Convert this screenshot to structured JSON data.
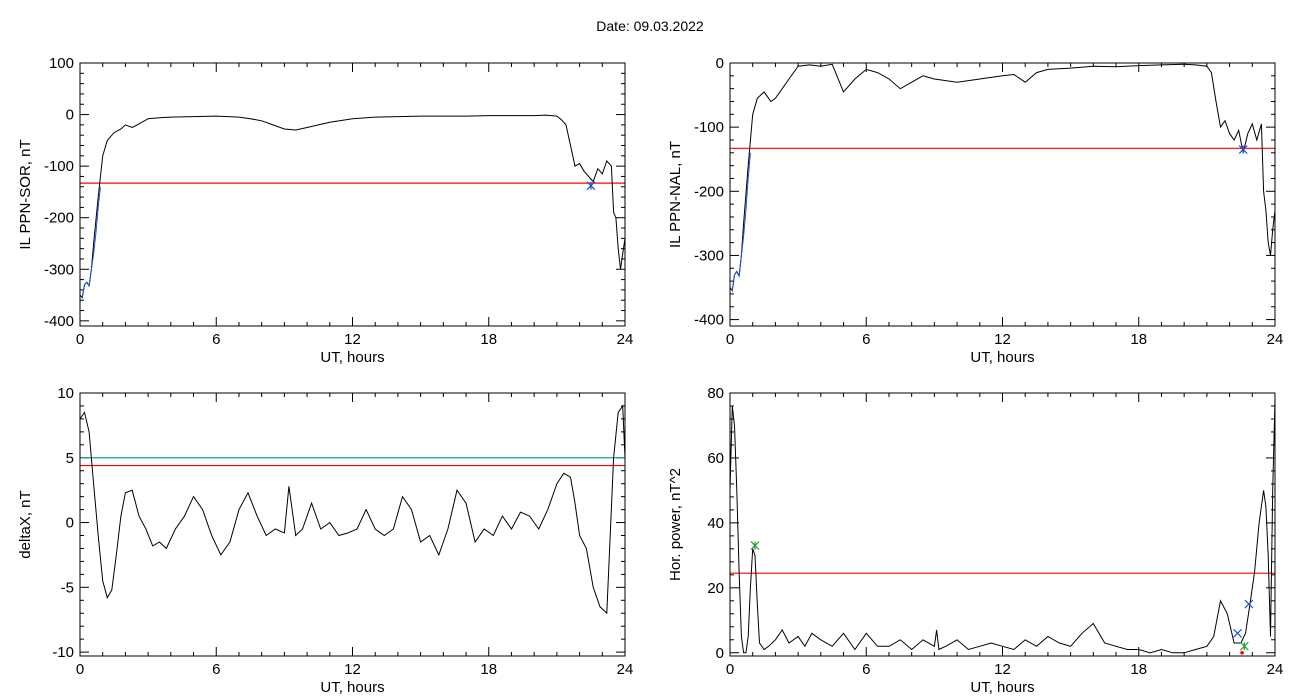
{
  "page_title": "Date:  09.03.2022",
  "colors": {
    "data_line": "#000000",
    "threshold_red": "#ff0000",
    "threshold_teal": "#1a9e8f",
    "marker_blue": "#1f4fd6",
    "marker_green": "#1a9e2a"
  },
  "chart_data": [
    {
      "type": "line",
      "id": "sor",
      "xlabel": "UT, hours",
      "ylabel": "IL PPN-SOR, nT",
      "xlim": [
        0,
        24
      ],
      "ylim": [
        -410,
        100
      ],
      "xticks": [
        0,
        6,
        12,
        18,
        24
      ],
      "yticks": [
        100,
        0,
        -100,
        -200,
        -300,
        -400
      ],
      "thresholds": [
        {
          "y": -133,
          "color": "#ff0000"
        }
      ],
      "series": [
        {
          "color": "#000000",
          "x": [
            0,
            0.1,
            0.2,
            0.3,
            0.4,
            0.5,
            0.6,
            0.8,
            1.0,
            1.2,
            1.5,
            1.8,
            2.0,
            2.3,
            2.6,
            3.0,
            3.5,
            4,
            5,
            6,
            7,
            7.5,
            8,
            8.5,
            9,
            9.5,
            10,
            10.5,
            11,
            12,
            13,
            14,
            15,
            16,
            17,
            18,
            19,
            20,
            20.5,
            21,
            21.2,
            21.4,
            21.6,
            21.8,
            22,
            22.2,
            22.4,
            22.6,
            22.8,
            23,
            23.2,
            23.4,
            23.5,
            23.6,
            23.7,
            23.8,
            23.9,
            24
          ],
          "y": [
            -350,
            -355,
            -330,
            -325,
            -332,
            -300,
            -250,
            -160,
            -80,
            -50,
            -35,
            -28,
            -20,
            -25,
            -18,
            -8,
            -6,
            -5,
            -4,
            -3,
            -5,
            -8,
            -12,
            -20,
            -28,
            -30,
            -25,
            -20,
            -15,
            -8,
            -5,
            -4,
            -3,
            -3,
            -3,
            -2,
            -2,
            -2,
            -1,
            -3,
            -10,
            -20,
            -60,
            -100,
            -95,
            -110,
            -120,
            -130,
            -105,
            -115,
            -90,
            -100,
            -190,
            -200,
            -260,
            -300,
            -270,
            -240
          ]
        },
        {
          "color": "#1f4fd6",
          "x": [
            0.1,
            0.2,
            0.3,
            0.4,
            0.5,
            0.6,
            0.7,
            0.8,
            0.9
          ],
          "y": [
            -355,
            -330,
            -325,
            -332,
            -300,
            -270,
            -230,
            -180,
            -140
          ]
        }
      ],
      "markers": [
        {
          "x": 22.5,
          "y": -138,
          "symbol": "*",
          "color": "#1f4fd6"
        }
      ]
    },
    {
      "type": "line",
      "id": "nal",
      "xlabel": "UT, hours",
      "ylabel": "IL PPN-NAL, nT",
      "xlim": [
        0,
        24
      ],
      "ylim": [
        -410,
        0
      ],
      "xticks": [
        0,
        6,
        12,
        18,
        24
      ],
      "yticks": [
        0,
        -100,
        -200,
        -300,
        -400
      ],
      "thresholds": [
        {
          "y": -133,
          "color": "#ff0000"
        }
      ],
      "series": [
        {
          "color": "#000000",
          "x": [
            0,
            0.1,
            0.2,
            0.3,
            0.4,
            0.5,
            0.6,
            0.8,
            1.0,
            1.2,
            1.5,
            1.8,
            2.0,
            2.3,
            2.6,
            3.0,
            3.5,
            4,
            4.5,
            5,
            5.5,
            6,
            6.5,
            7,
            7.5,
            8,
            8.5,
            9,
            10,
            11,
            12,
            12.5,
            13,
            13.5,
            14,
            15,
            16,
            17,
            18,
            19,
            20,
            20.5,
            21,
            21.2,
            21.4,
            21.6,
            21.8,
            22,
            22.2,
            22.4,
            22.6,
            22.8,
            23,
            23.2,
            23.4,
            23.5,
            23.6,
            23.7,
            23.8,
            23.9,
            24
          ],
          "y": [
            -350,
            -355,
            -330,
            -325,
            -332,
            -300,
            -250,
            -160,
            -80,
            -55,
            -45,
            -60,
            -55,
            -40,
            -25,
            -5,
            -3,
            -5,
            -2,
            -45,
            -25,
            -10,
            -15,
            -25,
            -40,
            -30,
            -20,
            -25,
            -30,
            -25,
            -20,
            -18,
            -30,
            -15,
            -10,
            -8,
            -5,
            -6,
            -4,
            -3,
            -2,
            -3,
            -5,
            -15,
            -60,
            -100,
            -90,
            -110,
            -120,
            -105,
            -140,
            -110,
            -95,
            -120,
            -95,
            -200,
            -230,
            -280,
            -300,
            -260,
            -230
          ]
        },
        {
          "color": "#1f4fd6",
          "x": [
            0.1,
            0.2,
            0.3,
            0.4,
            0.5,
            0.6,
            0.7,
            0.8,
            0.9
          ],
          "y": [
            -355,
            -330,
            -325,
            -332,
            -300,
            -270,
            -230,
            -180,
            -140
          ]
        }
      ],
      "markers": [
        {
          "x": 22.6,
          "y": -135,
          "symbol": "*",
          "color": "#1f4fd6"
        }
      ]
    },
    {
      "type": "line",
      "id": "deltax",
      "xlabel": "UT, hours",
      "ylabel": "deltaX, nT",
      "xlim": [
        0,
        24
      ],
      "ylim": [
        -10.3,
        10
      ],
      "xticks": [
        0,
        6,
        12,
        18,
        24
      ],
      "yticks": [
        10,
        5,
        0,
        -5,
        -10
      ],
      "thresholds": [
        {
          "y": 5.0,
          "color": "#1a9e8f"
        },
        {
          "y": 4.4,
          "color": "#ff0000"
        }
      ],
      "series": [
        {
          "color": "#000000",
          "x": [
            0,
            0.2,
            0.4,
            0.6,
            0.8,
            1.0,
            1.2,
            1.4,
            1.6,
            1.8,
            2.0,
            2.3,
            2.6,
            2.9,
            3.2,
            3.5,
            3.8,
            4.2,
            4.6,
            5.0,
            5.4,
            5.8,
            6.2,
            6.6,
            7.0,
            7.4,
            7.8,
            8.2,
            8.6,
            9.0,
            9.2,
            9.5,
            9.8,
            10.2,
            10.6,
            11.0,
            11.4,
            11.8,
            12.2,
            12.6,
            13.0,
            13.4,
            13.8,
            14.2,
            14.6,
            15.0,
            15.4,
            15.8,
            16.2,
            16.6,
            17.0,
            17.4,
            17.8,
            18.2,
            18.6,
            19.0,
            19.4,
            19.8,
            20.2,
            20.6,
            21.0,
            21.3,
            21.6,
            21.8,
            22.0,
            22.3,
            22.6,
            22.9,
            23.2,
            23.5,
            23.7,
            23.9,
            24
          ],
          "y": [
            8,
            8.5,
            7,
            3,
            -1,
            -4.5,
            -5.8,
            -5.2,
            -2.5,
            0.5,
            2.3,
            2.5,
            0.5,
            -0.5,
            -1.8,
            -1.5,
            -2,
            -0.5,
            0.5,
            2,
            1,
            -1,
            -2.5,
            -1.5,
            1,
            2.3,
            0.5,
            -1,
            -0.5,
            -0.8,
            2.8,
            -1,
            -0.5,
            1.5,
            -0.5,
            0,
            -1,
            -0.8,
            -0.5,
            1,
            -0.5,
            -1,
            -0.5,
            2,
            1,
            -1.5,
            -1,
            -2.5,
            -0.5,
            2.5,
            1.5,
            -1.5,
            -0.5,
            -1,
            0.5,
            -0.5,
            0.8,
            0.5,
            -0.5,
            1,
            3,
            3.8,
            3.5,
            1.5,
            -1,
            -2,
            -5,
            -6.5,
            -7,
            5,
            8.5,
            9,
            5
          ]
        }
      ],
      "markers": []
    },
    {
      "type": "line",
      "id": "power",
      "xlabel": "UT, hours",
      "ylabel": "Hor. power, nT^2",
      "xlim": [
        0,
        24
      ],
      "ylim": [
        -1,
        80
      ],
      "xticks": [
        0,
        6,
        12,
        18,
        24
      ],
      "yticks": [
        80,
        60,
        40,
        20,
        0
      ],
      "thresholds": [
        {
          "y": 24.5,
          "color": "#ff0000"
        }
      ],
      "series": [
        {
          "color": "#000000",
          "x": [
            0,
            0.1,
            0.2,
            0.3,
            0.4,
            0.5,
            0.6,
            0.7,
            0.8,
            0.9,
            1.0,
            1.1,
            1.2,
            1.3,
            1.5,
            1.7,
            2.0,
            2.3,
            2.6,
            3.0,
            3.3,
            3.6,
            4.0,
            4.5,
            5.0,
            5.5,
            6.0,
            6.5,
            7.0,
            7.5,
            8.0,
            8.5,
            9.0,
            9.1,
            9.2,
            9.5,
            10,
            10.5,
            11,
            11.5,
            12,
            12.5,
            13,
            13.5,
            14,
            14.5,
            15,
            15.5,
            16,
            16.5,
            17,
            17.5,
            18,
            18.5,
            19,
            19.5,
            20,
            20.5,
            21,
            21.3,
            21.6,
            21.9,
            22.2,
            22.5,
            22.7,
            22.9,
            23.1,
            23.3,
            23.5,
            23.6,
            23.7,
            23.8,
            23.9,
            24
          ],
          "y": [
            50,
            76,
            70,
            50,
            25,
            5,
            0,
            0,
            5,
            20,
            32,
            30,
            15,
            3,
            1,
            2,
            4,
            7,
            3,
            5,
            2,
            6,
            4,
            2,
            6,
            1,
            6,
            2,
            2,
            4,
            1,
            4,
            2,
            7,
            1,
            2,
            4,
            1,
            2,
            3,
            2,
            1,
            4,
            2,
            5,
            3,
            2,
            6,
            9,
            3,
            2,
            1,
            1,
            0,
            1,
            0,
            0,
            1,
            2,
            5,
            16,
            12,
            3,
            3,
            6,
            15,
            25,
            40,
            50,
            45,
            30,
            5,
            50,
            78
          ]
        }
      ],
      "markers": [
        {
          "x": 1.1,
          "y": 33,
          "symbol": "*",
          "color": "#1a9e2a"
        },
        {
          "x": 22.35,
          "y": 6,
          "symbol": "x",
          "color": "#1f4fd6"
        },
        {
          "x": 22.65,
          "y": 2,
          "symbol": "*",
          "color": "#1a9e2a"
        },
        {
          "x": 22.85,
          "y": 15,
          "symbol": "x",
          "color": "#1f4fd6"
        },
        {
          "x": 22.55,
          "y": 0,
          "symbol": "dot",
          "color": "#ff0000"
        }
      ]
    }
  ]
}
